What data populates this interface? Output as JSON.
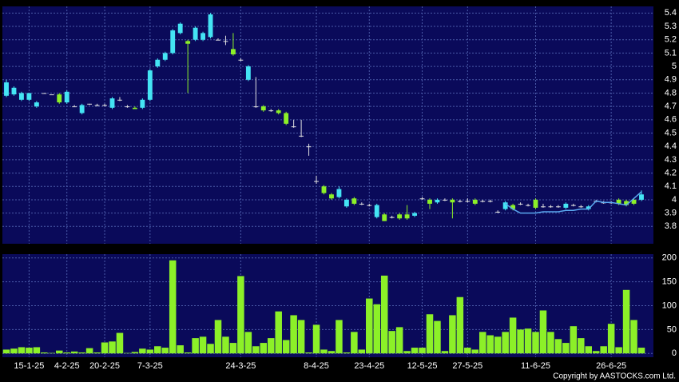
{
  "chart_data": [
    {
      "type": "candlestick",
      "up_color": "#44e4f4",
      "down_color": "#8cf028",
      "flat_color": "#e0e0e0",
      "categories": [
        null,
        null,
        null,
        "15-1-25",
        null,
        null,
        null,
        null,
        "4-2-25",
        null,
        null,
        null,
        null,
        "20-2-25",
        null,
        null,
        null,
        null,
        null,
        "7-3-25",
        null,
        null,
        null,
        null,
        null,
        null,
        null,
        null,
        null,
        null,
        null,
        "24-3-25",
        null,
        null,
        null,
        null,
        null,
        null,
        null,
        null,
        null,
        "8-4-25",
        null,
        null,
        null,
        null,
        null,
        null,
        "23-4-25",
        null,
        null,
        null,
        null,
        null,
        null,
        "12-5-25",
        null,
        null,
        null,
        null,
        null,
        "27-5-25",
        null,
        null,
        null,
        null,
        null,
        null,
        null,
        null,
        "11-6-25",
        null,
        null,
        null,
        null,
        null,
        null,
        null,
        null,
        null,
        "26-6-25",
        null,
        null,
        null,
        null
      ],
      "ohlc": [
        [
          4.78,
          4.9,
          4.77,
          4.88
        ],
        [
          4.79,
          4.85,
          4.78,
          4.84
        ],
        [
          4.75,
          4.81,
          4.74,
          4.8
        ],
        [
          4.75,
          4.8,
          4.74,
          4.8
        ],
        [
          4.7,
          4.74,
          4.69,
          4.73
        ],
        [
          4.8,
          4.8,
          4.8,
          4.8
        ],
        [
          4.79,
          4.79,
          4.79,
          4.79
        ],
        [
          4.79,
          4.8,
          4.72,
          4.73
        ],
        [
          4.73,
          4.82,
          4.72,
          4.81
        ],
        [
          4.7,
          4.71,
          4.7,
          4.7
        ],
        [
          4.65,
          4.72,
          4.64,
          4.71
        ],
        [
          4.72,
          4.72,
          4.71,
          4.72
        ],
        [
          4.71,
          4.72,
          4.7,
          4.71
        ],
        [
          4.71,
          4.72,
          4.7,
          4.71
        ],
        [
          4.69,
          4.77,
          4.68,
          4.76
        ],
        [
          4.75,
          4.77,
          4.74,
          4.75
        ],
        [
          4.7,
          4.71,
          4.69,
          4.7
        ],
        [
          4.69,
          4.7,
          4.68,
          4.68
        ],
        [
          4.69,
          4.76,
          4.68,
          4.75
        ],
        [
          4.75,
          4.98,
          4.74,
          4.97
        ],
        [
          5.0,
          5.06,
          4.99,
          5.05
        ],
        [
          5.05,
          5.11,
          5.04,
          5.1
        ],
        [
          5.1,
          5.28,
          5.09,
          5.27
        ],
        [
          5.25,
          5.33,
          5.24,
          5.32
        ],
        [
          5.19,
          5.2,
          4.8,
          5.17
        ],
        [
          5.2,
          5.3,
          5.19,
          5.29
        ],
        [
          5.2,
          5.26,
          5.19,
          5.25
        ],
        [
          5.22,
          5.4,
          5.21,
          5.39
        ],
        [
          5.2,
          5.21,
          5.2,
          5.2
        ],
        [
          5.19,
          5.23,
          5.16,
          5.19
        ],
        [
          5.13,
          5.25,
          5.08,
          5.09
        ],
        [
          5.05,
          5.06,
          5.04,
          5.05
        ],
        [
          4.9,
          5.01,
          4.89,
          5.0
        ],
        [
          4.7,
          4.92,
          4.69,
          4.7
        ],
        [
          4.7,
          4.71,
          4.66,
          4.67
        ],
        [
          4.67,
          4.68,
          4.66,
          4.67
        ],
        [
          4.67,
          4.68,
          4.64,
          4.65
        ],
        [
          4.65,
          4.66,
          4.56,
          4.57
        ],
        [
          4.55,
          4.6,
          4.54,
          4.55
        ],
        [
          4.48,
          4.6,
          4.47,
          4.48
        ],
        [
          4.4,
          4.42,
          4.33,
          4.4
        ],
        [
          4.14,
          4.18,
          4.12,
          4.14
        ],
        [
          4.1,
          4.11,
          4.04,
          4.05
        ],
        [
          4.04,
          4.05,
          4.0,
          4.01
        ],
        [
          4.02,
          4.1,
          4.01,
          4.08
        ],
        [
          3.95,
          4.01,
          3.94,
          4.0
        ],
        [
          4.01,
          4.02,
          3.96,
          3.97
        ],
        [
          3.97,
          3.98,
          3.96,
          3.97
        ],
        [
          3.96,
          3.97,
          3.95,
          3.96
        ],
        [
          3.87,
          3.97,
          3.86,
          3.96
        ],
        [
          3.89,
          3.9,
          3.84,
          3.84
        ],
        [
          3.87,
          3.88,
          3.86,
          3.87
        ],
        [
          3.89,
          3.9,
          3.85,
          3.86
        ],
        [
          3.89,
          3.96,
          3.85,
          3.86
        ],
        [
          3.88,
          3.91,
          3.87,
          3.9
        ],
        [
          4.01,
          4.02,
          4.0,
          4.01
        ],
        [
          4.0,
          4.01,
          3.93,
          3.97
        ],
        [
          3.98,
          4.01,
          3.97,
          4.0
        ],
        [
          4.0,
          4.01,
          3.99,
          4.0
        ],
        [
          4.0,
          4.01,
          3.86,
          3.98
        ],
        [
          3.99,
          4.0,
          3.98,
          3.99
        ],
        [
          3.99,
          4.01,
          3.98,
          3.99
        ],
        [
          4.0,
          4.01,
          3.96,
          3.97
        ],
        [
          3.99,
          4.0,
          3.98,
          3.99
        ],
        [
          3.99,
          4.0,
          3.98,
          3.99
        ],
        [
          3.91,
          3.92,
          3.9,
          3.91
        ],
        [
          3.93,
          3.99,
          3.92,
          3.98
        ],
        [
          3.96,
          3.97,
          3.92,
          3.93
        ],
        [
          3.97,
          3.98,
          3.96,
          3.97
        ],
        [
          3.96,
          3.97,
          3.95,
          3.96
        ],
        [
          4.0,
          4.01,
          3.93,
          3.94
        ],
        [
          3.95,
          3.97,
          3.94,
          3.95
        ],
        [
          3.95,
          3.96,
          3.94,
          3.95
        ],
        [
          3.95,
          3.96,
          3.94,
          3.95
        ],
        [
          3.94,
          3.98,
          3.93,
          3.97
        ],
        [
          3.96,
          3.97,
          3.95,
          3.96
        ],
        [
          3.95,
          3.96,
          3.94,
          3.95
        ],
        [
          3.93,
          3.96,
          3.92,
          3.95
        ],
        [
          3.99,
          4.0,
          3.98,
          3.99
        ],
        [
          3.98,
          3.99,
          3.97,
          3.98
        ],
        [
          3.98,
          3.99,
          3.97,
          3.98
        ],
        [
          4.0,
          4.01,
          3.96,
          3.97
        ],
        [
          3.99,
          4.0,
          3.95,
          3.96
        ],
        [
          4.0,
          4.01,
          3.96,
          3.97
        ],
        [
          4.0,
          4.07,
          3.99,
          4.04
        ]
      ],
      "line": {
        "color": "#5aa8f0",
        "values": [
          null,
          null,
          null,
          null,
          null,
          null,
          null,
          null,
          null,
          null,
          null,
          null,
          null,
          null,
          null,
          null,
          null,
          null,
          null,
          null,
          null,
          null,
          null,
          null,
          null,
          null,
          null,
          null,
          null,
          null,
          null,
          null,
          null,
          null,
          null,
          null,
          null,
          null,
          null,
          null,
          null,
          null,
          null,
          null,
          null,
          null,
          null,
          null,
          null,
          null,
          null,
          null,
          null,
          null,
          null,
          null,
          null,
          null,
          null,
          null,
          null,
          null,
          null,
          null,
          null,
          null,
          3.97,
          3.93,
          3.9,
          3.9,
          3.9,
          3.91,
          3.91,
          3.91,
          3.92,
          3.92,
          3.93,
          3.93,
          3.99,
          3.98,
          3.98,
          3.97,
          3.96,
          4.01,
          4.06
        ]
      },
      "ylim": [
        3.67,
        5.45
      ],
      "yticks": [
        5.4,
        5.3,
        5.2,
        5.1,
        5,
        4.9,
        4.8,
        4.7,
        4.6,
        4.5,
        4.4,
        4.3,
        4.2,
        4.1,
        4,
        3.9,
        3.8
      ],
      "grid": true
    },
    {
      "type": "bar",
      "color": "#8cf028",
      "values": [
        8,
        10,
        13,
        12,
        13,
        2,
        1,
        6,
        2,
        4,
        2,
        11,
        2,
        23,
        25,
        43,
        1,
        3,
        10,
        8,
        15,
        12,
        195,
        17,
        2,
        32,
        35,
        20,
        70,
        35,
        22,
        162,
        45,
        15,
        22,
        32,
        88,
        28,
        80,
        70,
        2,
        60,
        8,
        5,
        70,
        2,
        45,
        8,
        115,
        103,
        163,
        47,
        55,
        5,
        12,
        12,
        82,
        68,
        5,
        80,
        118,
        12,
        8,
        45,
        38,
        35,
        45,
        75,
        50,
        52,
        45,
        90,
        45,
        30,
        22,
        57,
        32,
        15,
        5,
        15,
        62,
        13,
        133,
        70,
        12
      ],
      "ylim": [
        -8,
        208
      ],
      "yticks": [
        0,
        50,
        100,
        150,
        200
      ],
      "grid": true
    }
  ],
  "copyright": "Copyright by AASTOCKS.com Ltd."
}
